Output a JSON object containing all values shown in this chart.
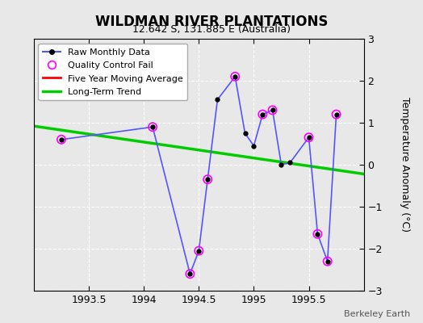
{
  "title": "WILDMAN RIVER PLANTATIONS",
  "subtitle": "12.642 S, 131.885 E (Australia)",
  "ylabel": "Temperature Anomaly (°C)",
  "watermark": "Berkeley Earth",
  "xlim": [
    1993.0,
    1996.0
  ],
  "ylim": [
    -3,
    3
  ],
  "xticks": [
    1993.5,
    1994.0,
    1994.5,
    1995.0,
    1995.5
  ],
  "yticks": [
    -3,
    -2,
    -1,
    0,
    1,
    2,
    3
  ],
  "raw_x": [
    1993.25,
    1994.08,
    1994.42,
    1994.5,
    1994.58,
    1994.67,
    1994.83,
    1994.92,
    1995.0,
    1995.08,
    1995.17,
    1995.25,
    1995.33,
    1995.5,
    1995.58,
    1995.67,
    1995.75
  ],
  "raw_y": [
    0.6,
    0.9,
    -2.6,
    -2.05,
    -0.35,
    1.55,
    2.1,
    0.75,
    0.45,
    1.2,
    1.3,
    0.0,
    0.05,
    0.65,
    -1.65,
    -2.3,
    1.2
  ],
  "qc_fail_x": [
    1993.25,
    1994.08,
    1994.42,
    1994.5,
    1994.58,
    1994.83,
    1995.08,
    1995.17,
    1995.5,
    1995.58,
    1995.67,
    1995.75
  ],
  "qc_fail_y": [
    0.6,
    0.9,
    -2.6,
    -2.05,
    -0.35,
    2.1,
    1.2,
    1.3,
    0.65,
    -1.65,
    -2.3,
    1.2
  ],
  "trend_x": [
    1993.0,
    1996.0
  ],
  "trend_y": [
    0.92,
    -0.22
  ],
  "raw_line_color": "#5555ff",
  "raw_marker_color": "black",
  "qc_color": "magenta",
  "trend_color": "#00cc00",
  "movavg_color": "red",
  "background_color": "#e8e8e8",
  "plot_bg_color": "#e8e8e8",
  "grid_color": "#ffffff"
}
